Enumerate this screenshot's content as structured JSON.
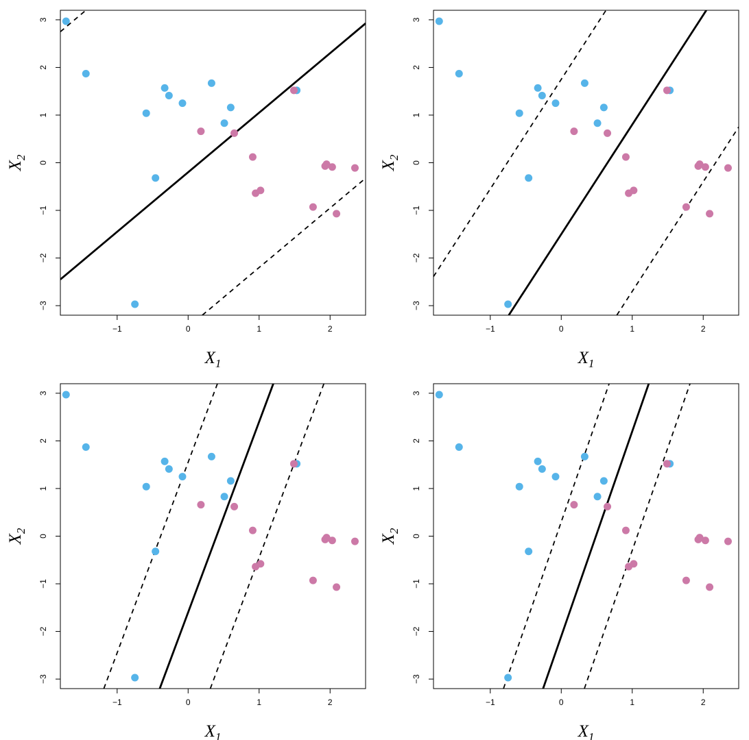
{
  "colors": {
    "class_blue": "#56B4E9",
    "class_pink": "#CC79A7",
    "line": "#000000",
    "frame": "#000000"
  },
  "points": {
    "blue": [
      [
        -1.72,
        2.97
      ],
      [
        -1.44,
        1.87
      ],
      [
        -0.59,
        1.04
      ],
      [
        -0.33,
        1.57
      ],
      [
        -0.27,
        1.41
      ],
      [
        -0.08,
        1.25
      ],
      [
        0.33,
        1.67
      ],
      [
        0.51,
        0.83
      ],
      [
        0.6,
        1.16
      ],
      [
        -0.46,
        -0.32
      ],
      [
        1.53,
        1.52
      ],
      [
        -0.75,
        -2.97
      ]
    ],
    "pink": [
      [
        0.18,
        0.66
      ],
      [
        0.65,
        0.62
      ],
      [
        0.91,
        0.12
      ],
      [
        0.95,
        -0.64
      ],
      [
        1.02,
        -0.58
      ],
      [
        1.49,
        1.52
      ],
      [
        1.76,
        -0.93
      ],
      [
        1.93,
        -0.07
      ],
      [
        1.95,
        -0.03
      ],
      [
        2.03,
        -0.09
      ],
      [
        2.09,
        -1.07
      ],
      [
        2.35,
        -0.11
      ]
    ]
  },
  "chart_data": [
    {
      "type": "scatter",
      "xlabel": "X",
      "xlabel_sub": "1",
      "ylabel": "X",
      "ylabel_sub": "2",
      "xlim": [
        -1.8,
        2.5
      ],
      "ylim": [
        -3.2,
        3.2
      ],
      "xticks": [
        -1,
        0,
        1,
        2
      ],
      "yticks": [
        -3,
        -2,
        -1,
        0,
        1,
        2,
        3
      ],
      "series": [
        {
          "ref": "points.blue",
          "color": "class_blue"
        },
        {
          "ref": "points.pink",
          "color": "class_pink"
        }
      ],
      "hyperplane": {
        "slope": 1.25,
        "intercept": -0.2,
        "lower_margin_intercept": -3.45,
        "upper_margin_intercept": 5.0
      }
    },
    {
      "type": "scatter",
      "xlabel": "X",
      "xlabel_sub": "1",
      "ylabel": "X",
      "ylabel_sub": "2",
      "xlim": [
        -1.8,
        2.5
      ],
      "ylim": [
        -3.2,
        3.2
      ],
      "xticks": [
        -1,
        0,
        1,
        2
      ],
      "yticks": [
        -3,
        -2,
        -1,
        0,
        1,
        2,
        3
      ],
      "series": [
        {
          "ref": "points.blue",
          "color": "class_blue"
        },
        {
          "ref": "points.pink",
          "color": "class_pink"
        }
      ],
      "hyperplane": {
        "slope": 2.3,
        "intercept": -1.5,
        "lower_margin_intercept": -5.0,
        "upper_margin_intercept": 1.75
      }
    },
    {
      "type": "scatter",
      "xlabel": "X",
      "xlabel_sub": "1",
      "ylabel": "X",
      "ylabel_sub": "2",
      "xlim": [
        -1.8,
        2.5
      ],
      "ylim": [
        -3.2,
        3.2
      ],
      "xticks": [
        -1,
        0,
        1,
        2
      ],
      "yticks": [
        -3,
        -2,
        -1,
        0,
        1,
        2,
        3
      ],
      "series": [
        {
          "ref": "points.blue",
          "color": "class_blue"
        },
        {
          "ref": "points.pink",
          "color": "class_pink"
        }
      ],
      "hyperplane": {
        "slope": 4.0,
        "intercept": -1.6,
        "lower_margin_intercept": -4.45,
        "upper_margin_intercept": 1.55
      }
    },
    {
      "type": "scatter",
      "xlabel": "X",
      "xlabel_sub": "1",
      "ylabel": "X",
      "ylabel_sub": "2",
      "xlim": [
        -1.8,
        2.5
      ],
      "ylim": [
        -3.2,
        3.2
      ],
      "xticks": [
        -1,
        0,
        1,
        2
      ],
      "yticks": [
        -3,
        -2,
        -1,
        0,
        1,
        2,
        3
      ],
      "series": [
        {
          "ref": "points.blue",
          "color": "class_blue"
        },
        {
          "ref": "points.pink",
          "color": "class_pink"
        }
      ],
      "hyperplane": {
        "slope": 4.3,
        "intercept": -2.1,
        "lower_margin_intercept": -4.6,
        "upper_margin_intercept": 0.3
      }
    }
  ]
}
